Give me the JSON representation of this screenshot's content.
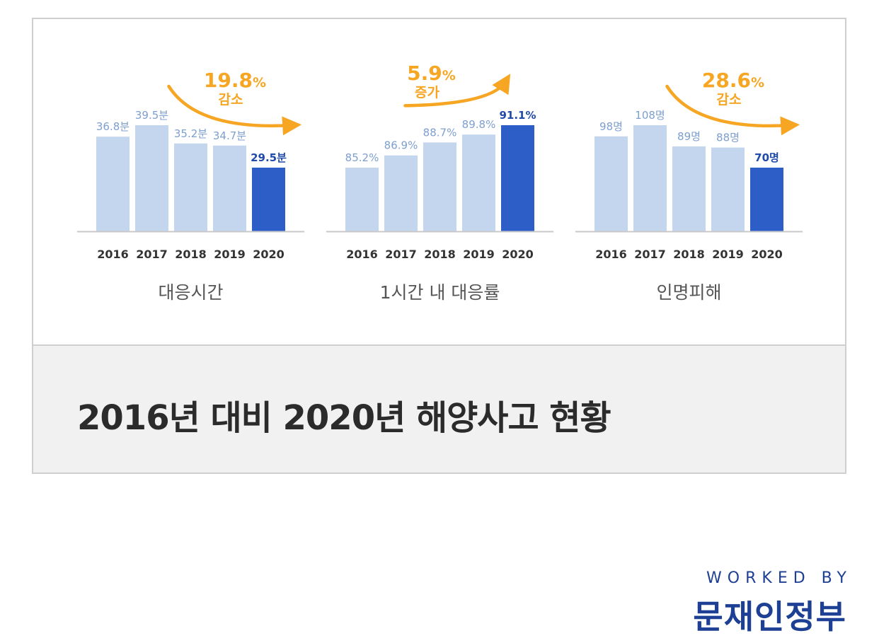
{
  "chart_data": [
    {
      "type": "bar",
      "title": "대응시간",
      "categories": [
        "2016",
        "2017",
        "2018",
        "2019",
        "2020"
      ],
      "values": [
        36.8,
        39.5,
        35.2,
        34.7,
        29.5
      ],
      "labels": [
        "36.8분",
        "39.5분",
        "35.2분",
        "34.7분",
        "29.5분"
      ],
      "highlight_index": 4,
      "change": {
        "pct": "19.8",
        "unit": "%",
        "word": "감소",
        "direction": "down"
      }
    },
    {
      "type": "bar",
      "title": "1시간 내 대응률",
      "categories": [
        "2016",
        "2017",
        "2018",
        "2019",
        "2020"
      ],
      "values": [
        85.2,
        86.9,
        88.7,
        89.8,
        91.1
      ],
      "labels": [
        "85.2%",
        "86.9%",
        "88.7%",
        "89.8%",
        "91.1%"
      ],
      "highlight_index": 4,
      "change": {
        "pct": "5.9",
        "unit": "%",
        "word": "증가",
        "direction": "up"
      }
    },
    {
      "type": "bar",
      "title": "인명피해",
      "categories": [
        "2016",
        "2017",
        "2018",
        "2019",
        "2020"
      ],
      "values": [
        98,
        108,
        89,
        88,
        70
      ],
      "labels": [
        "98명",
        "108명",
        "89명",
        "88명",
        "70명"
      ],
      "highlight_index": 4,
      "change": {
        "pct": "28.6",
        "unit": "%",
        "word": "감소",
        "direction": "down"
      }
    }
  ],
  "colors": {
    "bar": "#c3d6ee",
    "bar_highlight": "#2d5ec8",
    "label": "#7d9fcf",
    "label_highlight": "#1f4aaa",
    "accent": "#f6a623",
    "axis": "#c8c8c8",
    "tick": "#333333",
    "subtitle": "#555555",
    "brand": "#1d3f94"
  },
  "caption": {
    "title": "2016년 대비 2020년 해양사고 현황"
  },
  "footer": {
    "worked_by": "WORKED BY",
    "brand": "문재인정부"
  }
}
